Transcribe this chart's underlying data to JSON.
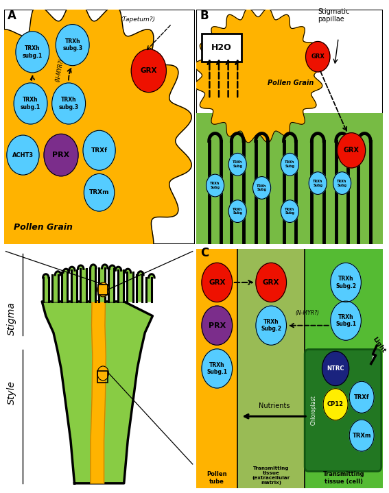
{
  "background_color": "#ffffff",
  "GOLD": "#FFB300",
  "CYAN": "#55CCFF",
  "RED": "#EE1100",
  "PURPLE": "#7B2D8B",
  "GREEN_STYLE": "#88CC44",
  "GREEN_STIGMA": "#66BB33",
  "GREEN_B": "#55AA33",
  "DARK_GREEN": "#2E7D32",
  "panel_A_label": "A",
  "panel_B_label": "B",
  "panel_C_label": "C"
}
